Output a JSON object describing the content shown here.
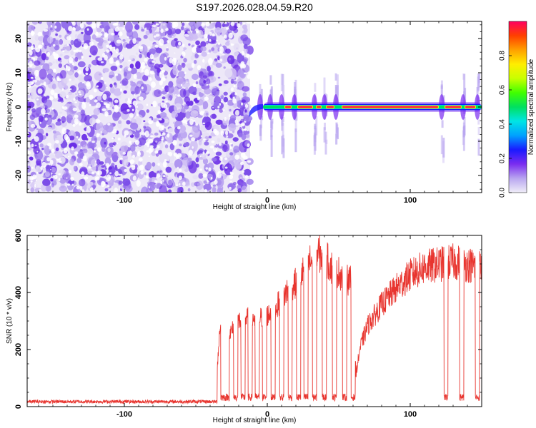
{
  "chart_data": [
    {
      "type": "heatmap",
      "title": "S197.2026.028.04.59.R20",
      "xlabel": "Height of straight line (km)",
      "ylabel": "Frequency (Hz)",
      "xlim": [
        -168,
        150
      ],
      "ylim": [
        -25,
        25
      ],
      "xticks": [
        -100,
        0,
        100
      ],
      "yticks": [
        -20,
        -10,
        0,
        10,
        20
      ],
      "grid": false,
      "colorbar": {
        "label": "Normalized spectral amplitude",
        "ticks": [
          "0.0",
          "0.2",
          "0.4",
          "0.6",
          "0.8"
        ],
        "range": [
          0,
          1
        ],
        "colors": [
          "#f0eef8",
          "#b9a6f0",
          "#7a2cf0",
          "#1a1aff",
          "#00a0ff",
          "#00e5e5",
          "#00e060",
          "#40ff00",
          "#c8ff00",
          "#ffee00",
          "#ffa000",
          "#ff4000",
          "#ff0060"
        ]
      },
      "signal": {
        "onset_km": -12,
        "band_hz": [
          -1,
          1
        ],
        "peak_amplitude": 0.95,
        "continuous_from_km": 52,
        "bright_segments": [
          {
            "x0": 12,
            "x1": 17
          },
          {
            "x0": 21,
            "x1": 32
          },
          {
            "x0": 34,
            "x1": 38
          },
          {
            "x0": 41,
            "x1": 47
          },
          {
            "x0": 52,
            "x1": 120
          },
          {
            "x0": 124,
            "x1": 136
          },
          {
            "x0": 138,
            "x1": 146
          }
        ],
        "drop_points_km": [
          -5,
          2,
          10,
          19,
          33,
          40,
          48,
          122,
          137,
          147
        ]
      },
      "noise": {
        "x_max_km": -12,
        "palette": [
          "#e3dcf5",
          "#cdbcf4",
          "#b39af0",
          "#9470ec",
          "#7a4be8",
          "#6a2ee6"
        ]
      }
    },
    {
      "type": "line",
      "title": "",
      "xlabel": "Height of straight line (km)",
      "ylabel": "SNR (10 * v/v)",
      "xlim": [
        -168,
        150
      ],
      "ylim": [
        0,
        600
      ],
      "xticks": [
        -100,
        0,
        100
      ],
      "yticks": [
        0,
        200,
        400,
        600
      ],
      "grid": false,
      "series": [
        {
          "color": "#e8352f",
          "baseline": {
            "x0": -168,
            "x1": -35,
            "y": 15,
            "jitter": 12
          },
          "envelope_x": [
            -35,
            -33,
            -30,
            -25,
            -20,
            -15,
            -10,
            -5,
            0,
            5,
            10,
            15,
            20,
            25,
            30,
            35,
            40,
            45,
            50,
            55,
            60,
            62,
            65,
            70,
            80,
            90,
            100,
            110,
            120,
            130,
            140,
            150
          ],
          "envelope_y": [
            150,
            300,
            250,
            280,
            320,
            330,
            330,
            330,
            340,
            360,
            400,
            440,
            460,
            500,
            540,
            570,
            560,
            520,
            500,
            480,
            460,
            120,
            220,
            300,
            380,
            440,
            490,
            520,
            530,
            540,
            530,
            520
          ],
          "dips_km": [
            -31,
            -28,
            -22,
            -17,
            -12,
            -7,
            -2,
            4,
            10,
            16,
            22,
            27,
            33,
            40,
            47,
            54,
            60,
            125,
            136,
            147
          ],
          "dip_width_km": 3,
          "dip_level": 20
        }
      ]
    }
  ]
}
